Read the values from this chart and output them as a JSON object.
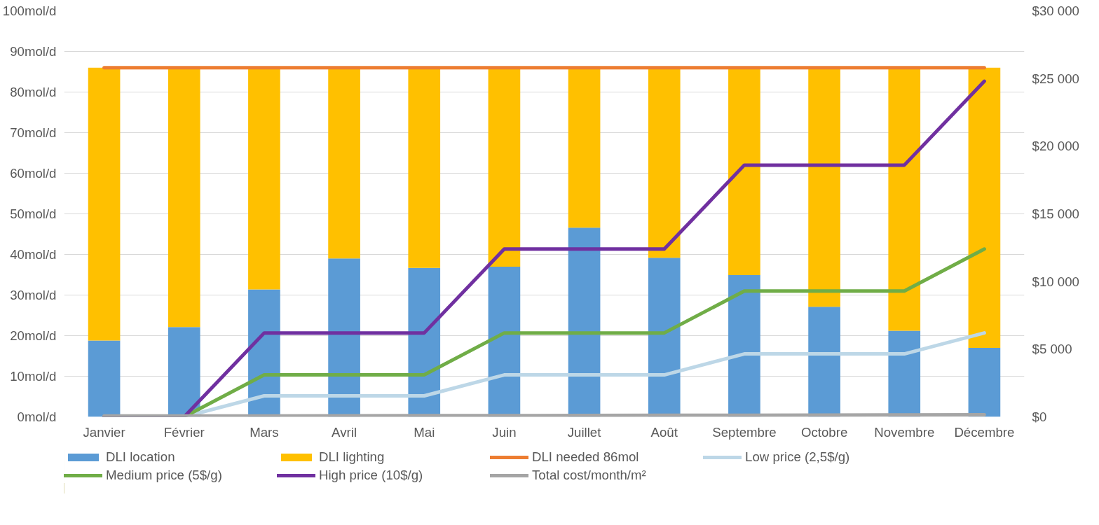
{
  "chart_data": {
    "type": "bar",
    "stacked": true,
    "categories": [
      "Janvier",
      "Février",
      "Mars",
      "Avril",
      "Mai",
      "Juin",
      "Juillet",
      "Août",
      "Septembre",
      "Octobre",
      "Novembre",
      "Décembre"
    ],
    "series": [
      {
        "name": "DLI location",
        "color": "#5b9bd5",
        "values": [
          18.8,
          22.1,
          31.4,
          39.0,
          36.7,
          37.0,
          46.6,
          39.2,
          34.9,
          27.1,
          21.2,
          17.0
        ]
      },
      {
        "name": "DLI lighting",
        "color": "#ffc000",
        "values": [
          67.2,
          63.9,
          54.6,
          47.0,
          49.3,
          49.0,
          39.4,
          46.8,
          51.1,
          58.9,
          64.8,
          69.0
        ]
      },
      {
        "name": "DLI needed 86mol",
        "type": "line",
        "color": "#ed7d31",
        "values": [
          86,
          86,
          86,
          86,
          86,
          86,
          86,
          86,
          86,
          86,
          86,
          86
        ]
      },
      {
        "name": "Low price (2,5$/g)",
        "type": "line",
        "axis": "y2",
        "color": "#bdd7e7",
        "values": [
          0,
          0,
          1550,
          1550,
          1550,
          3100,
          3100,
          3100,
          4650,
          4650,
          4650,
          6200
        ]
      },
      {
        "name": "Medium price (5$/g)",
        "type": "line",
        "axis": "y2",
        "color": "#70ad47",
        "values": [
          0,
          0,
          3100,
          3100,
          3100,
          6200,
          6200,
          6200,
          9300,
          9300,
          9300,
          12400
        ]
      },
      {
        "name": "High price (10$/g)",
        "type": "line",
        "axis": "y2",
        "color": "#7030a0",
        "values": [
          0,
          0,
          6200,
          6200,
          6200,
          12400,
          12400,
          12400,
          18600,
          18600,
          18600,
          24800
        ]
      },
      {
        "name": "Total cost/month/m²",
        "type": "line",
        "axis": "y2",
        "color": "#a5a5a5",
        "values": [
          60,
          60,
          70,
          80,
          90,
          90,
          100,
          110,
          120,
          130,
          140,
          150
        ]
      }
    ],
    "ylim": [
      0,
      100
    ],
    "yticks": [
      {
        "value": 0,
        "label": "0mol/d"
      },
      {
        "value": 10,
        "label": "10mol/d"
      },
      {
        "value": 20,
        "label": "20mol/d"
      },
      {
        "value": 30,
        "label": "30mol/d"
      },
      {
        "value": 40,
        "label": "40mol/d"
      },
      {
        "value": 50,
        "label": "50mol/d"
      },
      {
        "value": 60,
        "label": "60mol/d"
      },
      {
        "value": 70,
        "label": "70mol/d"
      },
      {
        "value": 80,
        "label": "80mol/d"
      },
      {
        "value": 90,
        "label": "90mol/d"
      },
      {
        "value": 100,
        "label": "100mol/d"
      }
    ],
    "y2lim": [
      0,
      30000
    ],
    "y2ticks": [
      {
        "value": 0,
        "label": "$0"
      },
      {
        "value": 5000,
        "label": "$5 000"
      },
      {
        "value": 10000,
        "label": "$10 000"
      },
      {
        "value": 15000,
        "label": "$15 000"
      },
      {
        "value": 20000,
        "label": "$20 000"
      },
      {
        "value": 25000,
        "label": "$25 000"
      },
      {
        "value": 30000,
        "label": "$30 000"
      }
    ],
    "grid": "y",
    "legend": "bottom",
    "marker": "none",
    "line_style": "solid"
  }
}
